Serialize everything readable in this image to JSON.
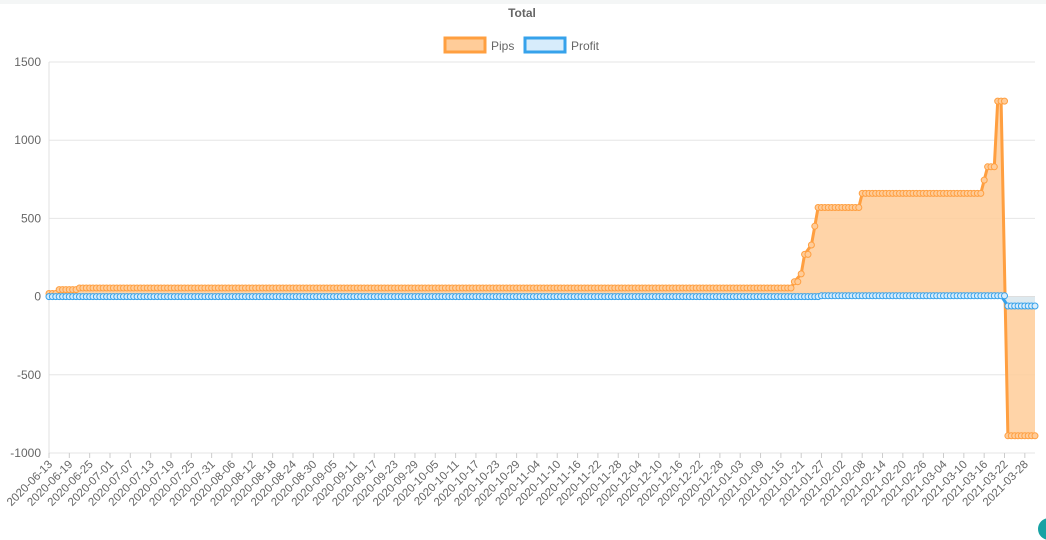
{
  "chart_data": {
    "type": "area",
    "title": "Total",
    "legend_position": "top",
    "grid": true,
    "xlabel": "",
    "ylabel": "",
    "ylim": [
      -1000,
      1500
    ],
    "yticks": [
      1500,
      1000,
      500,
      0,
      -500,
      -1000
    ],
    "x_start": "2020-06-13",
    "x_end": "2021-03-31",
    "x_tick_labels": [
      "2020-06-13",
      "2020-06-19",
      "2020-06-25",
      "2020-07-01",
      "2020-07-07",
      "2020-07-13",
      "2020-07-19",
      "2020-07-25",
      "2020-07-31",
      "2020-08-06",
      "2020-08-12",
      "2020-08-18",
      "2020-08-24",
      "2020-08-30",
      "2020-09-05",
      "2020-09-11",
      "2020-09-17",
      "2020-09-23",
      "2020-09-29",
      "2020-10-05",
      "2020-10-11",
      "2020-10-17",
      "2020-10-23",
      "2020-10-29",
      "2020-11-04",
      "2020-11-10",
      "2020-11-16",
      "2020-11-22",
      "2020-11-28",
      "2020-12-04",
      "2020-12-10",
      "2020-12-16",
      "2020-12-22",
      "2020-12-28",
      "2021-01-03",
      "2021-01-09",
      "2021-01-15",
      "2021-01-21",
      "2021-01-27",
      "2021-02-02",
      "2021-02-08",
      "2021-02-14",
      "2021-02-20",
      "2021-02-26",
      "2021-03-04",
      "2021-03-10",
      "2021-03-16",
      "2021-03-22",
      "2021-03-28"
    ],
    "series": [
      {
        "name": "Pips",
        "color": "#ff9f40",
        "fill": "#ffcc99",
        "points": [
          [
            "2020-06-13",
            20
          ],
          [
            "2020-06-15",
            20
          ],
          [
            "2020-06-16",
            45
          ],
          [
            "2020-06-21",
            45
          ],
          [
            "2020-06-22",
            55
          ],
          [
            "2021-01-18",
            55
          ],
          [
            "2021-01-19",
            95
          ],
          [
            "2021-01-21",
            145
          ],
          [
            "2021-01-22",
            270
          ],
          [
            "2021-01-24",
            330
          ],
          [
            "2021-01-25",
            450
          ],
          [
            "2021-01-26",
            570
          ],
          [
            "2021-02-07",
            570
          ],
          [
            "2021-02-08",
            660
          ],
          [
            "2021-03-15",
            660
          ],
          [
            "2021-03-16",
            745
          ],
          [
            "2021-03-17",
            830
          ],
          [
            "2021-03-19",
            830
          ],
          [
            "2021-03-20",
            1250
          ],
          [
            "2021-03-21",
            1250
          ],
          [
            "2021-03-23",
            -890
          ],
          [
            "2021-03-31",
            -890
          ]
        ]
      },
      {
        "name": "Profit",
        "color": "#36a2eb",
        "fill": "#d7ecfb",
        "points": [
          [
            "2020-06-13",
            0
          ],
          [
            "2021-01-25",
            0
          ],
          [
            "2021-01-27",
            5
          ],
          [
            "2021-03-21",
            5
          ],
          [
            "2021-03-23",
            -60
          ],
          [
            "2021-03-31",
            -60
          ]
        ]
      }
    ]
  }
}
